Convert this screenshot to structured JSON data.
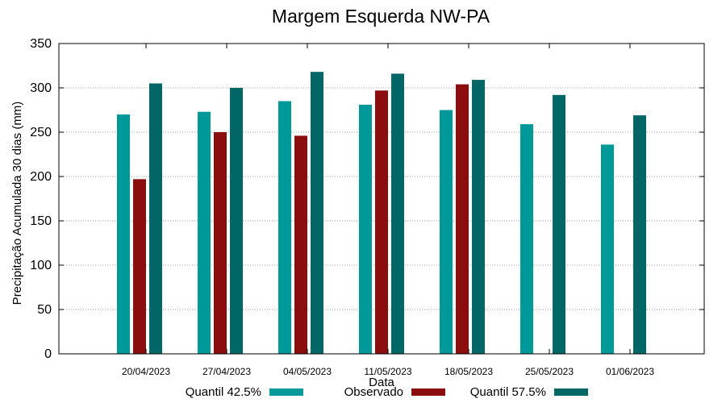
{
  "chart_data": {
    "type": "bar",
    "title": "Margem Esquerda NW-PA",
    "xlabel": "Data",
    "ylabel": "Precipitação Acumulada 30 dias (mm)",
    "ylim": [
      0,
      350
    ],
    "yticks": [
      0,
      50,
      100,
      150,
      200,
      250,
      300,
      350
    ],
    "grid": true,
    "legend_position": "bottom",
    "categories": [
      "20/04/2023",
      "27/04/2023",
      "04/05/2023",
      "11/05/2023",
      "18/05/2023",
      "25/05/2023",
      "01/06/2023"
    ],
    "series": [
      {
        "name": "Quantil 42.5%",
        "color": "#009999",
        "values": [
          270,
          273,
          285,
          281,
          275,
          259,
          236
        ]
      },
      {
        "name": "Observado",
        "color": "#8b0d0d",
        "values": [
          197,
          250,
          246,
          297,
          304,
          null,
          null
        ]
      },
      {
        "name": "Quantil 57.5%",
        "color": "#006666",
        "values": [
          305,
          300,
          318,
          316,
          309,
          292,
          269
        ]
      }
    ]
  }
}
